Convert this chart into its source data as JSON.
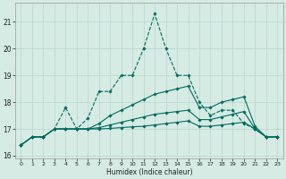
{
  "xlabel": "Humidex (Indice chaleur)",
  "bg_color": "#d5ebe4",
  "grid_color": "#b8d5ce",
  "line_color": "#006b5e",
  "xlim": [
    -0.5,
    23.5
  ],
  "ylim": [
    15.9,
    21.7
  ],
  "yticks": [
    16,
    17,
    18,
    19,
    20,
    21
  ],
  "xticks": [
    0,
    1,
    2,
    3,
    4,
    5,
    6,
    7,
    8,
    9,
    10,
    11,
    12,
    13,
    14,
    15,
    16,
    17,
    18,
    19,
    20,
    21,
    22,
    23
  ],
  "series": [
    {
      "x": [
        0,
        1,
        2,
        3,
        4,
        5,
        6,
        7,
        8,
        9,
        10,
        11,
        12,
        13,
        14,
        15,
        16,
        17,
        18,
        19,
        20,
        21,
        22,
        23
      ],
      "y": [
        16.4,
        16.7,
        16.7,
        17.0,
        17.8,
        17.0,
        17.4,
        18.4,
        18.4,
        19.0,
        19.0,
        20.0,
        21.3,
        20.0,
        19.0,
        19.0,
        18.0,
        17.5,
        17.7,
        17.7,
        17.2,
        17.0,
        16.7,
        16.7
      ],
      "linestyle": "--",
      "linewidth": 0.8,
      "marker": "D",
      "markersize": 1.8
    },
    {
      "x": [
        0,
        1,
        2,
        3,
        4,
        5,
        6,
        7,
        8,
        9,
        10,
        11,
        12,
        13,
        14,
        15,
        16,
        17,
        18,
        19,
        20,
        21,
        22,
        23
      ],
      "y": [
        16.4,
        16.7,
        16.7,
        17.0,
        17.0,
        17.0,
        17.0,
        17.2,
        17.5,
        17.7,
        17.9,
        18.1,
        18.3,
        18.4,
        18.5,
        18.6,
        17.8,
        17.8,
        18.0,
        18.1,
        18.2,
        17.1,
        16.7,
        16.7
      ],
      "linestyle": "-",
      "linewidth": 0.8,
      "marker": "D",
      "markersize": 1.8
    },
    {
      "x": [
        0,
        1,
        2,
        3,
        4,
        5,
        6,
        7,
        8,
        9,
        10,
        11,
        12,
        13,
        14,
        15,
        16,
        17,
        18,
        19,
        20,
        21,
        22,
        23
      ],
      "y": [
        16.4,
        16.7,
        16.7,
        17.0,
        17.0,
        17.0,
        17.0,
        17.05,
        17.15,
        17.25,
        17.35,
        17.45,
        17.55,
        17.6,
        17.65,
        17.7,
        17.35,
        17.35,
        17.45,
        17.55,
        17.65,
        17.0,
        16.7,
        16.7
      ],
      "linestyle": "-",
      "linewidth": 0.8,
      "marker": "D",
      "markersize": 1.8
    },
    {
      "x": [
        0,
        1,
        2,
        3,
        4,
        5,
        6,
        7,
        8,
        9,
        10,
        11,
        12,
        13,
        14,
        15,
        16,
        17,
        18,
        19,
        20,
        21,
        22,
        23
      ],
      "y": [
        16.4,
        16.7,
        16.7,
        17.0,
        17.0,
        17.0,
        17.0,
        17.0,
        17.02,
        17.05,
        17.08,
        17.1,
        17.15,
        17.2,
        17.25,
        17.3,
        17.1,
        17.1,
        17.15,
        17.2,
        17.25,
        17.0,
        16.7,
        16.7
      ],
      "linestyle": "-",
      "linewidth": 0.8,
      "marker": "D",
      "markersize": 1.8
    }
  ]
}
